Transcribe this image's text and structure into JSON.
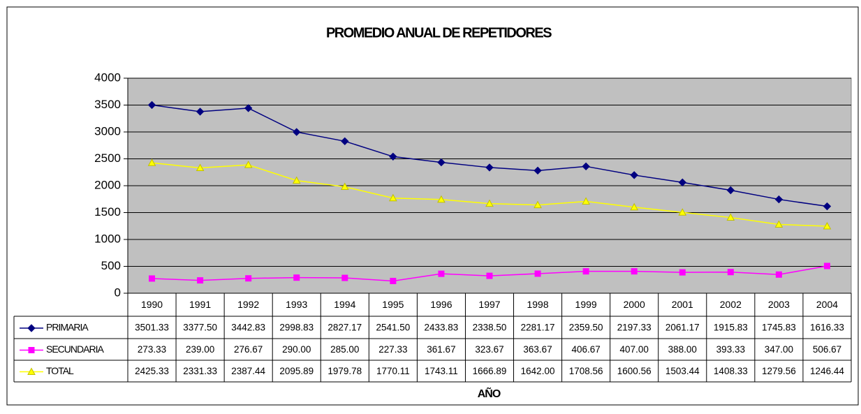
{
  "chart_data": {
    "type": "line",
    "title": "PROMEDIO ANUAL DE REPETIDORES",
    "x_label": "AÑO",
    "categories": [
      "1990",
      "1991",
      "1992",
      "1993",
      "1994",
      "1995",
      "1996",
      "1997",
      "1998",
      "1999",
      "2000",
      "2001",
      "2002",
      "2003",
      "2004"
    ],
    "series": [
      {
        "name": "PRIMARIA",
        "color": "#000080",
        "marker": "diamond",
        "values": [
          3501.33,
          3377.5,
          3442.83,
          2998.83,
          2827.17,
          2541.5,
          2433.83,
          2338.5,
          2281.17,
          2359.5,
          2197.33,
          2061.17,
          1915.83,
          1745.83,
          1616.33
        ],
        "value_labels": [
          "3501.33",
          "3377.50",
          "3442.83",
          "2998.83",
          "2827.17",
          "2541.50",
          "2433.83",
          "2338.50",
          "2281.17",
          "2359.50",
          "2197.33",
          "2061.17",
          "1915.83",
          "1745.83",
          "1616.33"
        ]
      },
      {
        "name": "SECUNDARIA",
        "color": "#FF00FF",
        "marker": "square",
        "values": [
          273.33,
          239,
          276.67,
          290,
          285,
          227.33,
          361.67,
          323.67,
          363.67,
          406.67,
          407,
          388,
          393.33,
          347,
          506.67
        ],
        "value_labels": [
          "273.33",
          "239.00",
          "276.67",
          "290.00",
          "285.00",
          "227.33",
          "361.67",
          "323.67",
          "363.67",
          "406.67",
          "407.00",
          "388.00",
          "393.33",
          "347.00",
          "506.67"
        ]
      },
      {
        "name": "TOTAL",
        "color": "#FFFF00",
        "marker": "triangle",
        "values": [
          2425.33,
          2331.33,
          2387.44,
          2095.89,
          1979.78,
          1770.11,
          1743.11,
          1666.89,
          1642,
          1708.56,
          1600.56,
          1503.44,
          1408.33,
          1279.56,
          1246.44
        ],
        "value_labels": [
          "2425.33",
          "2331.33",
          "2387.44",
          "2095.89",
          "1979.78",
          "1770.11",
          "1743.11",
          "1666.89",
          "1642.00",
          "1708.56",
          "1600.56",
          "1503.44",
          "1408.33",
          "1279.56",
          "1246.44"
        ]
      }
    ],
    "ylim": [
      0,
      4000
    ],
    "yticks": [
      0,
      500,
      1000,
      1500,
      2000,
      2500,
      3000,
      3500,
      4000
    ],
    "grid": true,
    "plot_background": "#C0C0C0"
  }
}
